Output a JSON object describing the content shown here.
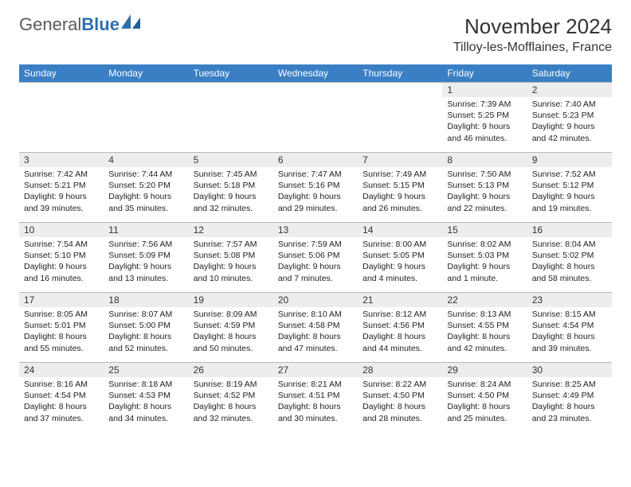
{
  "brand": {
    "first": "General",
    "second": "Blue"
  },
  "title": "November 2024",
  "location": "Tilloy-les-Mofflaines, France",
  "colors": {
    "header_bg": "#3a7fc4",
    "header_fg": "#ffffff",
    "daynum_bg": "#ededed",
    "border": "#b8b8b8",
    "logo_accent": "#2f6fad"
  },
  "day_labels": [
    "Sunday",
    "Monday",
    "Tuesday",
    "Wednesday",
    "Thursday",
    "Friday",
    "Saturday"
  ],
  "weeks": [
    [
      null,
      null,
      null,
      null,
      null,
      {
        "n": "1",
        "sr": "7:39 AM",
        "ss": "5:25 PM",
        "dl": "9 hours and 46 minutes."
      },
      {
        "n": "2",
        "sr": "7:40 AM",
        "ss": "5:23 PM",
        "dl": "9 hours and 42 minutes."
      }
    ],
    [
      {
        "n": "3",
        "sr": "7:42 AM",
        "ss": "5:21 PM",
        "dl": "9 hours and 39 minutes."
      },
      {
        "n": "4",
        "sr": "7:44 AM",
        "ss": "5:20 PM",
        "dl": "9 hours and 35 minutes."
      },
      {
        "n": "5",
        "sr": "7:45 AM",
        "ss": "5:18 PM",
        "dl": "9 hours and 32 minutes."
      },
      {
        "n": "6",
        "sr": "7:47 AM",
        "ss": "5:16 PM",
        "dl": "9 hours and 29 minutes."
      },
      {
        "n": "7",
        "sr": "7:49 AM",
        "ss": "5:15 PM",
        "dl": "9 hours and 26 minutes."
      },
      {
        "n": "8",
        "sr": "7:50 AM",
        "ss": "5:13 PM",
        "dl": "9 hours and 22 minutes."
      },
      {
        "n": "9",
        "sr": "7:52 AM",
        "ss": "5:12 PM",
        "dl": "9 hours and 19 minutes."
      }
    ],
    [
      {
        "n": "10",
        "sr": "7:54 AM",
        "ss": "5:10 PM",
        "dl": "9 hours and 16 minutes."
      },
      {
        "n": "11",
        "sr": "7:56 AM",
        "ss": "5:09 PM",
        "dl": "9 hours and 13 minutes."
      },
      {
        "n": "12",
        "sr": "7:57 AM",
        "ss": "5:08 PM",
        "dl": "9 hours and 10 minutes."
      },
      {
        "n": "13",
        "sr": "7:59 AM",
        "ss": "5:06 PM",
        "dl": "9 hours and 7 minutes."
      },
      {
        "n": "14",
        "sr": "8:00 AM",
        "ss": "5:05 PM",
        "dl": "9 hours and 4 minutes."
      },
      {
        "n": "15",
        "sr": "8:02 AM",
        "ss": "5:03 PM",
        "dl": "9 hours and 1 minute."
      },
      {
        "n": "16",
        "sr": "8:04 AM",
        "ss": "5:02 PM",
        "dl": "8 hours and 58 minutes."
      }
    ],
    [
      {
        "n": "17",
        "sr": "8:05 AM",
        "ss": "5:01 PM",
        "dl": "8 hours and 55 minutes."
      },
      {
        "n": "18",
        "sr": "8:07 AM",
        "ss": "5:00 PM",
        "dl": "8 hours and 52 minutes."
      },
      {
        "n": "19",
        "sr": "8:09 AM",
        "ss": "4:59 PM",
        "dl": "8 hours and 50 minutes."
      },
      {
        "n": "20",
        "sr": "8:10 AM",
        "ss": "4:58 PM",
        "dl": "8 hours and 47 minutes."
      },
      {
        "n": "21",
        "sr": "8:12 AM",
        "ss": "4:56 PM",
        "dl": "8 hours and 44 minutes."
      },
      {
        "n": "22",
        "sr": "8:13 AM",
        "ss": "4:55 PM",
        "dl": "8 hours and 42 minutes."
      },
      {
        "n": "23",
        "sr": "8:15 AM",
        "ss": "4:54 PM",
        "dl": "8 hours and 39 minutes."
      }
    ],
    [
      {
        "n": "24",
        "sr": "8:16 AM",
        "ss": "4:54 PM",
        "dl": "8 hours and 37 minutes."
      },
      {
        "n": "25",
        "sr": "8:18 AM",
        "ss": "4:53 PM",
        "dl": "8 hours and 34 minutes."
      },
      {
        "n": "26",
        "sr": "8:19 AM",
        "ss": "4:52 PM",
        "dl": "8 hours and 32 minutes."
      },
      {
        "n": "27",
        "sr": "8:21 AM",
        "ss": "4:51 PM",
        "dl": "8 hours and 30 minutes."
      },
      {
        "n": "28",
        "sr": "8:22 AM",
        "ss": "4:50 PM",
        "dl": "8 hours and 28 minutes."
      },
      {
        "n": "29",
        "sr": "8:24 AM",
        "ss": "4:50 PM",
        "dl": "8 hours and 25 minutes."
      },
      {
        "n": "30",
        "sr": "8:25 AM",
        "ss": "4:49 PM",
        "dl": "8 hours and 23 minutes."
      }
    ]
  ],
  "labels": {
    "sunrise": "Sunrise:",
    "sunset": "Sunset:",
    "daylight": "Daylight:"
  }
}
